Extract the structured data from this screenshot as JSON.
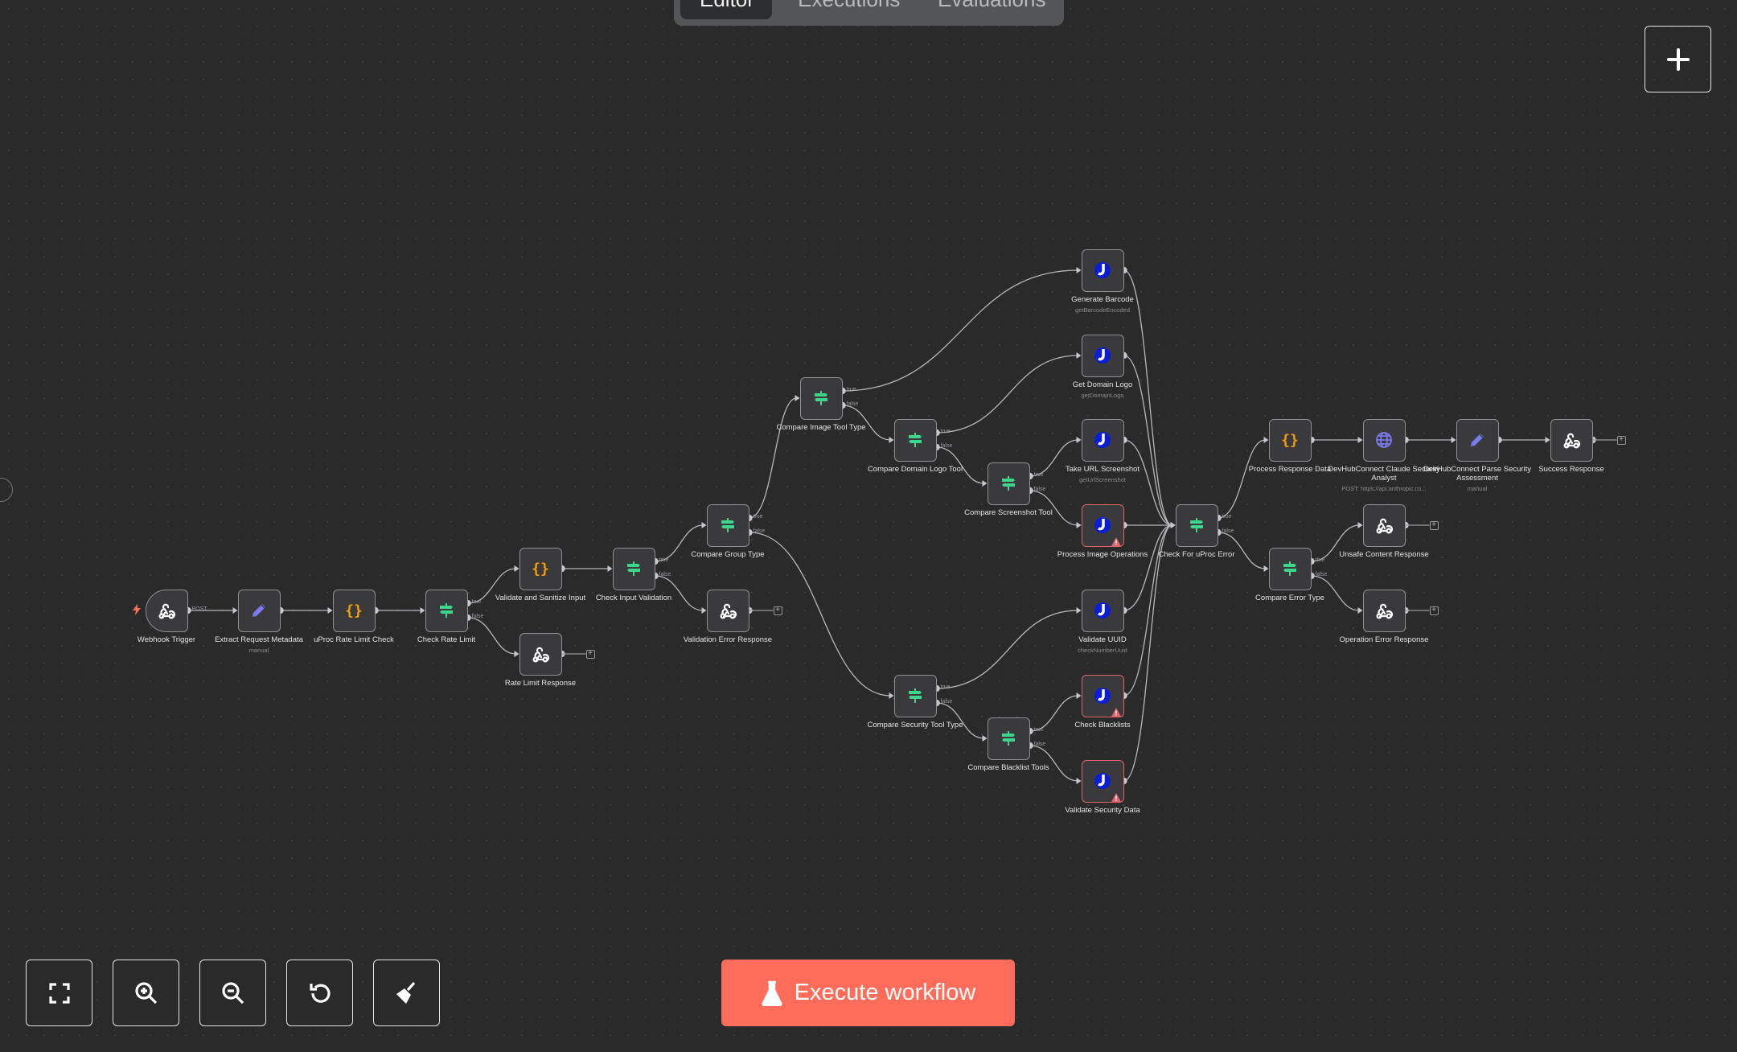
{
  "tabs": [
    {
      "label": "Editor",
      "active": true
    },
    {
      "label": "Executions",
      "active": false
    },
    {
      "label": "Evaluations",
      "active": false
    }
  ],
  "branch_labels": {
    "true": "true",
    "false": "false",
    "post": "POST"
  },
  "colors": {
    "accent": "#ff6d5a",
    "if_green": "#3dd68c",
    "code_orange": "#f59e0b",
    "uproc_blue": "#0a1ed6",
    "edit_purple": "#7b7bf0",
    "error_red": "#e0646a"
  },
  "nodes": [
    {
      "id": "webhook",
      "label": "Webhook Trigger",
      "sub": "",
      "icon": "webhook-icon",
      "trigger": true
    },
    {
      "id": "extract",
      "label": "Extract Request Metadata",
      "sub": "manual",
      "icon": "pencil-icon"
    },
    {
      "id": "uprocRate",
      "label": "uProc Rate Limit Check",
      "sub": "",
      "icon": "code-braces-icon"
    },
    {
      "id": "checkRate",
      "label": "Check Rate Limit",
      "sub": "",
      "icon": "if-signpost-icon"
    },
    {
      "id": "validateSanitize",
      "label": "Validate and Sanitize Input",
      "sub": "",
      "icon": "code-braces-icon"
    },
    {
      "id": "rateLimitResp",
      "label": "Rate Limit Response",
      "sub": "",
      "icon": "webhook-icon",
      "end": true
    },
    {
      "id": "checkInput",
      "label": "Check Input Validation",
      "sub": "",
      "icon": "if-signpost-icon"
    },
    {
      "id": "compareGroup",
      "label": "Compare Group Type",
      "sub": "",
      "icon": "if-signpost-icon"
    },
    {
      "id": "validationErr",
      "label": "Validation Error Response",
      "sub": "",
      "icon": "webhook-icon",
      "end": true
    },
    {
      "id": "compareImage",
      "label": "Compare Image Tool Type",
      "sub": "",
      "icon": "if-signpost-icon"
    },
    {
      "id": "compareDomain",
      "label": "Compare Domain Logo Tool",
      "sub": "",
      "icon": "if-signpost-icon"
    },
    {
      "id": "compareScreenshot",
      "label": "Compare Screenshot Tool",
      "sub": "",
      "icon": "if-signpost-icon"
    },
    {
      "id": "genBarcode",
      "label": "Generate Barcode",
      "sub": "getBarcodeEncoded",
      "icon": "uproc-icon"
    },
    {
      "id": "getLogo",
      "label": "Get Domain Logo",
      "sub": "getDomainLogo",
      "icon": "uproc-icon"
    },
    {
      "id": "takeScreenshot",
      "label": "Take URL Screenshot",
      "sub": "getUrlScreenshot",
      "icon": "uproc-icon"
    },
    {
      "id": "processImage",
      "label": "Process Image Operations",
      "sub": "",
      "icon": "uproc-icon",
      "error": true
    },
    {
      "id": "compareSecurity",
      "label": "Compare Security Tool Type",
      "sub": "",
      "icon": "if-signpost-icon"
    },
    {
      "id": "compareBlacklist",
      "label": "Compare Blacklist Tools",
      "sub": "",
      "icon": "if-signpost-icon"
    },
    {
      "id": "validateUuid",
      "label": "Validate UUID",
      "sub": "checkNumberUuid",
      "icon": "uproc-icon"
    },
    {
      "id": "checkBlacklists",
      "label": "Check Blacklists",
      "sub": "",
      "icon": "uproc-icon",
      "error": true
    },
    {
      "id": "validateSecurity",
      "label": "Validate Security Data",
      "sub": "",
      "icon": "uproc-icon",
      "error": true
    },
    {
      "id": "checkError",
      "label": "Check For uProc Error",
      "sub": "",
      "icon": "if-signpost-icon"
    },
    {
      "id": "processResponse",
      "label": "Process Response Data",
      "sub": "",
      "icon": "code-braces-icon"
    },
    {
      "id": "claude",
      "label": "DevHubConnect Claude Security Analyst",
      "sub": "POST: https://api.anthropic.co...",
      "icon": "globe-icon"
    },
    {
      "id": "parse",
      "label": "DevHubConnect Parse Security Assessment",
      "sub": "manual",
      "icon": "pencil-icon"
    },
    {
      "id": "success",
      "label": "Success Response",
      "sub": "",
      "icon": "webhook-icon",
      "end": true
    },
    {
      "id": "compareErrorType",
      "label": "Compare Error Type",
      "sub": "",
      "icon": "if-signpost-icon"
    },
    {
      "id": "unsafe",
      "label": "Unsafe Content Response",
      "sub": "",
      "icon": "webhook-icon",
      "end": true
    },
    {
      "id": "opError",
      "label": "Operation Error Response",
      "sub": "",
      "icon": "webhook-icon",
      "end": true
    }
  ],
  "connections": [
    [
      "webhook",
      0,
      "extract"
    ],
    [
      "extract",
      0,
      "uprocRate"
    ],
    [
      "uprocRate",
      0,
      "checkRate"
    ],
    [
      "checkRate",
      1,
      "validateSanitize"
    ],
    [
      "checkRate",
      2,
      "rateLimitResp"
    ],
    [
      "validateSanitize",
      0,
      "checkInput"
    ],
    [
      "checkInput",
      1,
      "compareGroup"
    ],
    [
      "checkInput",
      2,
      "validationErr"
    ],
    [
      "compareGroup",
      1,
      "compareImage"
    ],
    [
      "compareGroup",
      2,
      "compareSecurity"
    ],
    [
      "compareImage",
      1,
      "genBarcode"
    ],
    [
      "compareImage",
      2,
      "compareDomain"
    ],
    [
      "compareDomain",
      1,
      "getLogo"
    ],
    [
      "compareDomain",
      2,
      "compareScreenshot"
    ],
    [
      "compareScreenshot",
      1,
      "takeScreenshot"
    ],
    [
      "compareScreenshot",
      2,
      "processImage"
    ],
    [
      "compareSecurity",
      1,
      "validateUuid"
    ],
    [
      "compareSecurity",
      2,
      "compareBlacklist"
    ],
    [
      "compareBlacklist",
      1,
      "checkBlacklists"
    ],
    [
      "compareBlacklist",
      2,
      "validateSecurity"
    ],
    [
      "genBarcode",
      0,
      "checkError"
    ],
    [
      "getLogo",
      0,
      "checkError"
    ],
    [
      "takeScreenshot",
      0,
      "checkError"
    ],
    [
      "processImage",
      0,
      "checkError"
    ],
    [
      "validateUuid",
      0,
      "checkError"
    ],
    [
      "checkBlacklists",
      0,
      "checkError"
    ],
    [
      "validateSecurity",
      0,
      "checkError"
    ],
    [
      "checkError",
      1,
      "processResponse"
    ],
    [
      "checkError",
      2,
      "compareErrorType"
    ],
    [
      "processResponse",
      0,
      "claude"
    ],
    [
      "claude",
      0,
      "parse"
    ],
    [
      "parse",
      0,
      "success"
    ],
    [
      "compareErrorType",
      1,
      "unsafe"
    ],
    [
      "compareErrorType",
      2,
      "opError"
    ]
  ],
  "controls": [
    {
      "name": "fit-view-button",
      "icon": "fullscreen-icon"
    },
    {
      "name": "zoom-in-button",
      "icon": "zoom-in-icon"
    },
    {
      "name": "zoom-out-button",
      "icon": "zoom-out-icon"
    },
    {
      "name": "reset-zoom-button",
      "icon": "undo-icon"
    },
    {
      "name": "tidy-up-button",
      "icon": "broom-icon"
    }
  ],
  "execute_button": {
    "label": "Execute workflow",
    "icon": "flask-icon"
  },
  "add_node_button": {
    "icon": "plus-icon"
  }
}
